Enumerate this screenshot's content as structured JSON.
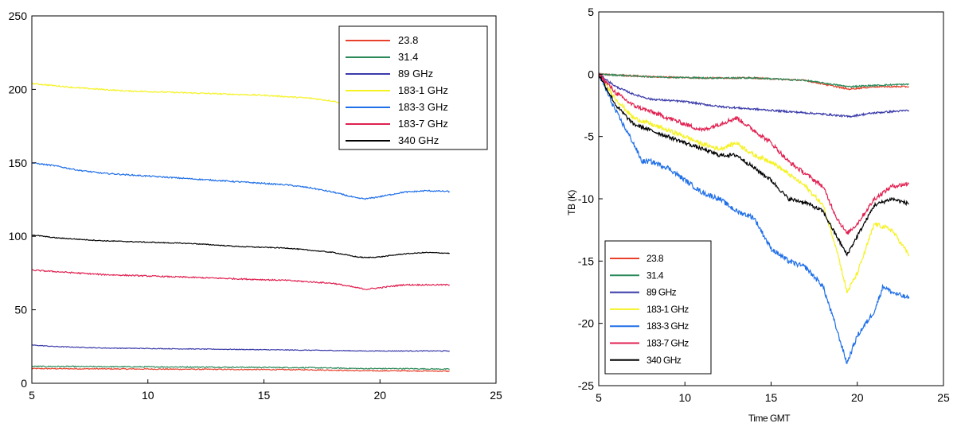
{
  "chart_data": [
    {
      "type": "line",
      "title": "",
      "xlabel": "",
      "ylabel": "",
      "xlim": [
        5,
        25
      ],
      "ylim": [
        0,
        250
      ],
      "xticks": [
        "5",
        "10",
        "15",
        "20",
        "25"
      ],
      "yticks": [
        "0",
        "50",
        "100",
        "150",
        "200",
        "250"
      ],
      "grid": false,
      "legend_position": "top-right",
      "x_range": [
        5,
        23
      ],
      "series": [
        {
          "name": "23.8",
          "color": "#e8402a",
          "points": [
            [
              5,
              10
            ],
            [
              8,
              9.8
            ],
            [
              11,
              9.6
            ],
            [
              14,
              9.4
            ],
            [
              17,
              9.2
            ],
            [
              19.3,
              8.5
            ],
            [
              21,
              8.5
            ],
            [
              23,
              8.2
            ]
          ]
        },
        {
          "name": "31.4",
          "color": "#2a8a5a",
          "points": [
            [
              5,
              11.5
            ],
            [
              8,
              11.3
            ],
            [
              11,
              11.1
            ],
            [
              14,
              10.9
            ],
            [
              17,
              10.6
            ],
            [
              19.3,
              10
            ],
            [
              21,
              10
            ],
            [
              23,
              9.6
            ]
          ]
        },
        {
          "name": "89 GHz",
          "color": "#3a3aaa",
          "points": [
            [
              5,
              26
            ],
            [
              6,
              25
            ],
            [
              8,
              24
            ],
            [
              11,
              23.5
            ],
            [
              14,
              23
            ],
            [
              17,
              22.5
            ],
            [
              19.3,
              22
            ],
            [
              21,
              22
            ],
            [
              23,
              22
            ]
          ]
        },
        {
          "name": "183-1 GHz",
          "color": "#f5f222",
          "points": [
            [
              5,
              204
            ],
            [
              7,
              201
            ],
            [
              9,
              199
            ],
            [
              11,
              198
            ],
            [
              13,
              197
            ],
            [
              15,
              196
            ],
            [
              17,
              194
            ],
            [
              18,
              192
            ],
            [
              18.5,
              190
            ]
          ]
        },
        {
          "name": "183-3 GHz",
          "color": "#1f6fe8",
          "points": [
            [
              5,
              150
            ],
            [
              6,
              148
            ],
            [
              7,
              145
            ],
            [
              8,
              143
            ],
            [
              10,
              141
            ],
            [
              12,
              139
            ],
            [
              14,
              137
            ],
            [
              16,
              135
            ],
            [
              17,
              133
            ],
            [
              18,
              130
            ],
            [
              19,
              126
            ],
            [
              19.4,
              125.5
            ],
            [
              20,
              127
            ],
            [
              21,
              130
            ],
            [
              22,
              131
            ],
            [
              23,
              130.5
            ]
          ]
        },
        {
          "name": "183-7 GHz",
          "color": "#e02050",
          "points": [
            [
              5,
              77
            ],
            [
              6,
              76
            ],
            [
              8,
              74
            ],
            [
              10,
              73
            ],
            [
              12,
              72
            ],
            [
              14,
              71
            ],
            [
              16,
              70
            ],
            [
              18,
              68
            ],
            [
              19,
              65
            ],
            [
              19.4,
              64
            ],
            [
              20,
              65
            ],
            [
              21,
              67
            ],
            [
              22,
              67
            ],
            [
              23,
              67
            ]
          ]
        },
        {
          "name": "340 GHz",
          "color": "#000000",
          "points": [
            [
              5,
              101
            ],
            [
              6,
              99
            ],
            [
              8,
              97
            ],
            [
              10,
              96
            ],
            [
              12,
              95
            ],
            [
              14,
              93
            ],
            [
              16,
              92
            ],
            [
              18,
              89
            ],
            [
              19,
              86
            ],
            [
              19.4,
              85.5
            ],
            [
              20,
              86
            ],
            [
              21,
              88
            ],
            [
              22,
              89
            ],
            [
              23,
              88.5
            ]
          ]
        }
      ]
    },
    {
      "type": "line",
      "title": "",
      "xlabel": "Time GMT",
      "ylabel": "TB (K)",
      "xlim": [
        5,
        25
      ],
      "ylim": [
        -25,
        5
      ],
      "xticks": [
        "5",
        "10",
        "15",
        "20",
        "25"
      ],
      "yticks": [
        "-25",
        "-20",
        "-15",
        "-10",
        "-5",
        "0",
        "5"
      ],
      "grid": false,
      "legend_position": "bottom-left",
      "x_range": [
        5,
        23
      ],
      "series": [
        {
          "name": "23.8",
          "color": "#e8402a",
          "points": [
            [
              5,
              0
            ],
            [
              8,
              -0.2
            ],
            [
              11,
              -0.3
            ],
            [
              14,
              -0.3
            ],
            [
              17,
              -0.5
            ],
            [
              19.5,
              -1.2
            ],
            [
              21,
              -1
            ],
            [
              23,
              -1
            ]
          ]
        },
        {
          "name": "31.4",
          "color": "#2a8a5a",
          "points": [
            [
              5,
              0
            ],
            [
              8,
              -0.2
            ],
            [
              11,
              -0.3
            ],
            [
              14,
              -0.3
            ],
            [
              17,
              -0.5
            ],
            [
              19.5,
              -1
            ],
            [
              21,
              -0.9
            ],
            [
              23,
              -0.8
            ]
          ]
        },
        {
          "name": "89 GHz",
          "color": "#3a3aaa",
          "points": [
            [
              5,
              0
            ],
            [
              6,
              -1
            ],
            [
              7,
              -1.6
            ],
            [
              8,
              -2
            ],
            [
              10,
              -2.2
            ],
            [
              12,
              -2.6
            ],
            [
              14,
              -2.8
            ],
            [
              16,
              -3
            ],
            [
              18,
              -3.2
            ],
            [
              19.5,
              -3.4
            ],
            [
              21,
              -3.1
            ],
            [
              23,
              -2.9
            ]
          ]
        },
        {
          "name": "183-1 GHz",
          "color": "#f5f222",
          "points": [
            [
              5,
              0
            ],
            [
              6,
              -2
            ],
            [
              7,
              -3.5
            ],
            [
              8,
              -4
            ],
            [
              9,
              -4.5
            ],
            [
              10,
              -5
            ],
            [
              11,
              -5.6
            ],
            [
              12,
              -6
            ],
            [
              13,
              -5.5
            ],
            [
              14,
              -6.5
            ],
            [
              15,
              -7
            ],
            [
              16,
              -8
            ],
            [
              17,
              -9
            ],
            [
              18,
              -10.5
            ],
            [
              18.8,
              -14
            ],
            [
              19.4,
              -17.5
            ],
            [
              20,
              -16
            ],
            [
              21,
              -12
            ],
            [
              22,
              -12.5
            ],
            [
              23,
              -14.5
            ]
          ]
        },
        {
          "name": "183-3 GHz",
          "color": "#1f6fe8",
          "points": [
            [
              5,
              0
            ],
            [
              6,
              -3
            ],
            [
              7,
              -5.5
            ],
            [
              7.5,
              -7
            ],
            [
              8,
              -7
            ],
            [
              9,
              -7.5
            ],
            [
              10,
              -8.5
            ],
            [
              11,
              -9.5
            ],
            [
              12,
              -10
            ],
            [
              13,
              -11
            ],
            [
              14,
              -11.5
            ],
            [
              15,
              -14
            ],
            [
              16,
              -15
            ],
            [
              17,
              -15.5
            ],
            [
              18,
              -17
            ],
            [
              18.7,
              -20
            ],
            [
              19.4,
              -23.2
            ],
            [
              20,
              -21
            ],
            [
              21,
              -19
            ],
            [
              21.5,
              -17
            ],
            [
              22,
              -17.5
            ],
            [
              23,
              -18
            ]
          ]
        },
        {
          "name": "183-7 GHz",
          "color": "#e02050",
          "points": [
            [
              5,
              0
            ],
            [
              6,
              -1.5
            ],
            [
              7,
              -2.5
            ],
            [
              8,
              -3
            ],
            [
              9,
              -3.5
            ],
            [
              10,
              -4
            ],
            [
              11,
              -4.5
            ],
            [
              12,
              -4
            ],
            [
              13,
              -3.5
            ],
            [
              14,
              -4.5
            ],
            [
              15,
              -5.5
            ],
            [
              16,
              -7
            ],
            [
              17,
              -8
            ],
            [
              18,
              -9
            ],
            [
              18.8,
              -11.5
            ],
            [
              19.4,
              -12.8
            ],
            [
              20,
              -12
            ],
            [
              21,
              -10
            ],
            [
              22,
              -9
            ],
            [
              23,
              -8.8
            ]
          ]
        },
        {
          "name": "340 GHz",
          "color": "#000000",
          "points": [
            [
              5,
              0
            ],
            [
              6,
              -2.5
            ],
            [
              7,
              -4
            ],
            [
              8,
              -4.5
            ],
            [
              9,
              -5
            ],
            [
              10,
              -5.5
            ],
            [
              11,
              -6
            ],
            [
              12,
              -6.5
            ],
            [
              13,
              -6.5
            ],
            [
              14,
              -7.5
            ],
            [
              15,
              -8.5
            ],
            [
              16,
              -10
            ],
            [
              17,
              -10.3
            ],
            [
              18,
              -11
            ],
            [
              18.8,
              -13
            ],
            [
              19.4,
              -14.5
            ],
            [
              20,
              -13
            ],
            [
              21,
              -10.5
            ],
            [
              22,
              -10
            ],
            [
              23,
              -10.4
            ]
          ]
        }
      ]
    }
  ]
}
